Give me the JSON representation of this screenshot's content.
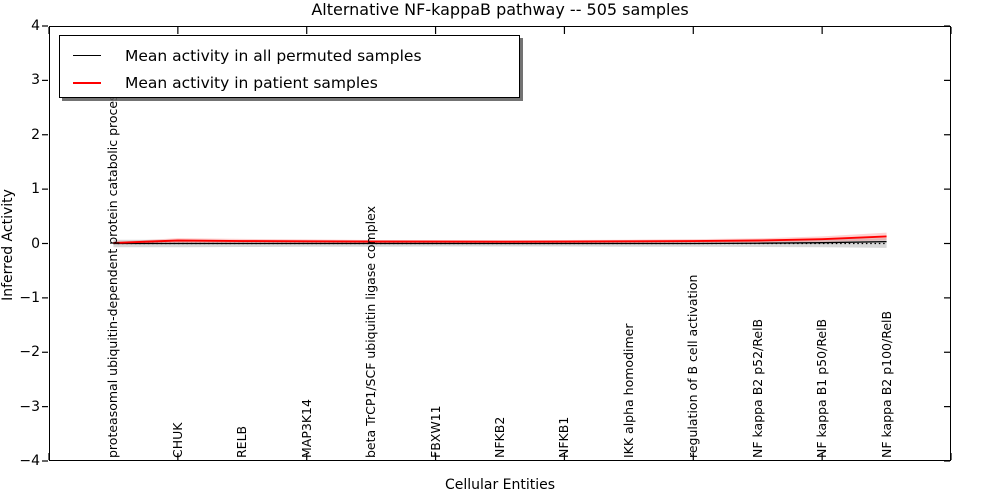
{
  "title": "Alternative NF-kappaB pathway -- 505 samples",
  "legend": {
    "items": [
      {
        "label": "Mean activity in all permuted samples",
        "color": "#000000"
      },
      {
        "label": "Mean activity in patient samples",
        "color": "#ff0000"
      }
    ]
  },
  "chart_data": {
    "type": "line",
    "title": "Alternative NF-kappaB pathway -- 505 samples",
    "xlabel": "Cellular Entities",
    "ylabel": "Inferred Activity",
    "xlim": [
      0,
      14
    ],
    "ylim": [
      -4,
      4
    ],
    "grid": false,
    "legend_position": "upper left",
    "yticks": [
      4,
      3,
      2,
      1,
      0,
      -1,
      -2,
      -3,
      -4
    ],
    "ytick_labels": [
      "4",
      "3",
      "2",
      "1",
      "0",
      "−1",
      "−2",
      "−3",
      "−4"
    ],
    "xtick_positions": [
      0,
      2,
      4,
      6,
      8,
      10,
      12,
      14
    ],
    "categories": [
      "proteasomal ubiquitin-dependent protein catabolic process",
      "CHUK",
      "RELB",
      "MAP3K14",
      "beta TrCP1/SCF ubiquitin ligase complex",
      "FBXW11",
      "NFKB2",
      "NFKB1",
      "IKK alpha homodimer",
      "regulation of B cell activation",
      "NF kappa B2 p52/RelB",
      "NF kappa B1 p50/RelB",
      "NF kappa B2 p100/RelB"
    ],
    "x": [
      1,
      2,
      3,
      4,
      5,
      6,
      7,
      8,
      9,
      10,
      11,
      12,
      13
    ],
    "zero_line": {
      "y": 0,
      "style": "dotted",
      "color": "#000000"
    },
    "series": [
      {
        "name": "Mean activity in all permuted samples",
        "color": "#000000",
        "values": [
          0.0,
          0.0,
          0.0,
          0.0,
          0.0,
          0.0,
          0.0,
          0.0,
          0.0,
          0.0,
          0.005,
          0.015,
          0.035
        ],
        "band": {
          "color": "#999999",
          "opacity": 0.38,
          "upper": [
            0.07,
            0.07,
            0.065,
            0.06,
            0.06,
            0.055,
            0.055,
            0.055,
            0.06,
            0.06,
            0.065,
            0.075,
            0.1
          ],
          "lower": [
            -0.07,
            -0.07,
            -0.065,
            -0.06,
            -0.06,
            -0.055,
            -0.055,
            -0.055,
            -0.06,
            -0.06,
            -0.065,
            -0.07,
            -0.08
          ]
        }
      },
      {
        "name": "Mean activity in patient samples",
        "color": "#ff0000",
        "values": [
          0.01,
          0.055,
          0.045,
          0.04,
          0.035,
          0.035,
          0.033,
          0.035,
          0.04,
          0.045,
          0.055,
          0.08,
          0.13
        ],
        "band": {
          "color": "#ff3030",
          "opacity": 0.22,
          "upper": [
            0.03,
            0.1,
            0.085,
            0.075,
            0.065,
            0.063,
            0.06,
            0.065,
            0.07,
            0.08,
            0.095,
            0.13,
            0.2
          ],
          "lower": [
            -0.01,
            0.01,
            0.008,
            0.005,
            0.005,
            0.005,
            0.005,
            0.005,
            0.01,
            0.012,
            0.018,
            0.03,
            0.06
          ]
        }
      }
    ]
  }
}
